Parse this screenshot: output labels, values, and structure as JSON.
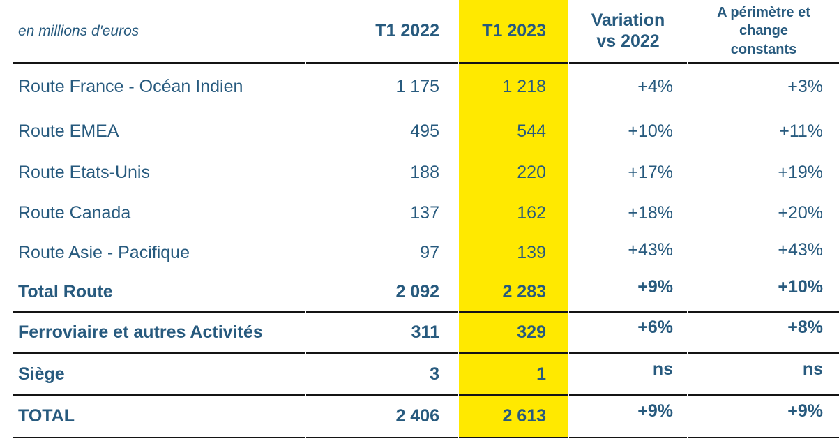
{
  "chart_data": {
    "type": "table",
    "unit_label": "en millions d'euros",
    "header": {
      "t1_2022": "T1 2022",
      "t1_2023": "T1 2023",
      "variation": "Variation\nvs 2022",
      "constant": "A périmètre et\nchange\nconstants"
    },
    "rows": [
      {
        "label": "Route France - Océan Indien",
        "t1_2022": "1 175",
        "t1_2023": "1 218",
        "variation": "+4%",
        "constant": "+3%",
        "bold": false,
        "rule_below": false
      },
      {
        "label": "Route EMEA",
        "t1_2022": "495",
        "t1_2023": "544",
        "variation": "+10%",
        "constant": "+11%",
        "bold": false,
        "rule_below": false
      },
      {
        "label": "Route Etats-Unis",
        "t1_2022": "188",
        "t1_2023": "220",
        "variation": "+17%",
        "constant": "+19%",
        "bold": false,
        "rule_below": false
      },
      {
        "label": "Route Canada",
        "t1_2022": "137",
        "t1_2023": "162",
        "variation": "+18%",
        "constant": "+20%",
        "bold": false,
        "rule_below": false
      },
      {
        "label": "Route Asie - Pacifique",
        "t1_2022": "97",
        "t1_2023": "139",
        "variation": "+43%",
        "constant": "+43%",
        "bold": false,
        "rule_below": false
      },
      {
        "label": "Total Route",
        "t1_2022": "2 092",
        "t1_2023": "2 283",
        "variation": "+9%",
        "constant": "+10%",
        "bold": true,
        "rule_below": true
      },
      {
        "label": "Ferroviaire et autres Activités",
        "t1_2022": "311",
        "t1_2023": "329",
        "variation": "+6%",
        "constant": "+8%",
        "bold": true,
        "rule_below": true
      },
      {
        "label": "Siège",
        "t1_2022": "3",
        "t1_2023": "1",
        "variation": "ns",
        "constant": "ns",
        "bold": true,
        "rule_below": true
      },
      {
        "label": "TOTAL",
        "t1_2022": "2 406",
        "t1_2023": "2 613",
        "variation": "+9%",
        "constant": "+9%",
        "bold": true,
        "rule_below": true
      }
    ],
    "layout": {
      "highlighted_column": "T1 2023",
      "highlight_color": "#FFE900",
      "text_color": "#275A7E",
      "rule_color": "#141414"
    }
  }
}
